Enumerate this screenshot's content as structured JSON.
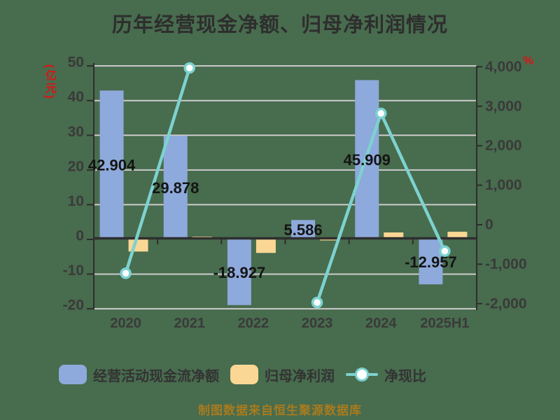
{
  "title": "历年经营现金净额、归母净利润情况",
  "footer": "制图数据来自恒生聚源数据库",
  "axes": {
    "left_unit": "(亿元)",
    "right_unit": "%"
  },
  "legend": [
    {
      "label": "经营活动现金流净额",
      "type": "bar",
      "color": "#8EA9DB"
    },
    {
      "label": "归母净利润",
      "type": "bar",
      "color": "#FAD794"
    },
    {
      "label": "净现比",
      "type": "line",
      "color": "#7CD2D0"
    }
  ],
  "chart_data": {
    "type": "bar",
    "title": "历年经营现金净额、归母净利润情况",
    "categories": [
      "2020",
      "2021",
      "2022",
      "2023",
      "2024",
      "2025H1"
    ],
    "series": [
      {
        "name": "经营活动现金流净额",
        "type": "bar",
        "axis": "left",
        "color": "#8EA9DB",
        "values": [
          42.904,
          29.878,
          -18.927,
          5.586,
          45.909,
          -12.957
        ],
        "labels": [
          "42.904",
          "29.878",
          "-18.927",
          "5.586",
          "45.909",
          "-12.957"
        ]
      },
      {
        "name": "归母净利润",
        "type": "bar",
        "axis": "left",
        "color": "#FAD794",
        "values": [
          -3.5,
          0.8,
          -3.9,
          -0.3,
          2.0,
          2.2
        ]
      },
      {
        "name": "净现比",
        "type": "line",
        "axis": "right",
        "color": "#7CD2D0",
        "values": [
          -1230,
          3970,
          null,
          -1970,
          2820,
          -670
        ]
      }
    ],
    "left_axis": {
      "unit": "(亿元)",
      "tick_labels": [
        "50",
        "40",
        "30",
        "20",
        "10",
        "0",
        "-10",
        "-20"
      ],
      "tick_values": [
        50,
        40,
        30,
        20,
        10,
        0,
        -10,
        -20
      ],
      "range": [
        -20,
        50
      ]
    },
    "right_axis": {
      "unit": "%",
      "tick_labels": [
        "4,000",
        "3,000",
        "2,000",
        "1,000",
        "0",
        "-1,000",
        "-2,000"
      ],
      "tick_values": [
        4000,
        3000,
        2000,
        1000,
        0,
        -1000,
        -2000
      ],
      "range": [
        -2000,
        4000
      ]
    },
    "grid": true,
    "legend_position": "bottom"
  }
}
